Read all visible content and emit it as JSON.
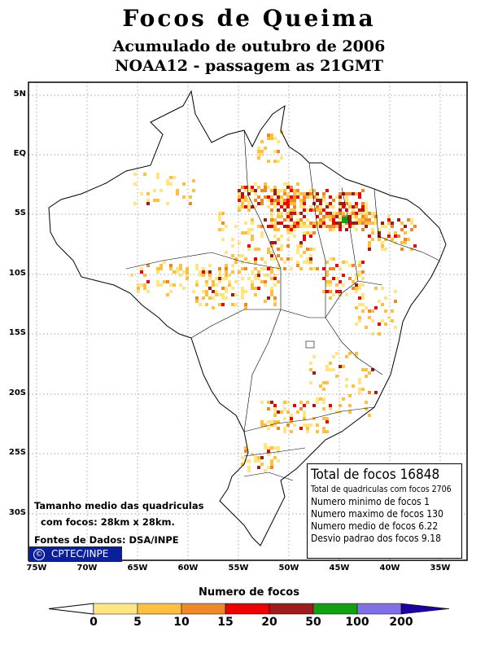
{
  "header": {
    "title": "Focos de Queima",
    "subtitle_1": "Acumulado de outubro de 2006",
    "subtitle_2": "NOAA12 - passagem as 21GMT"
  },
  "map": {
    "latitude_labels": [
      "5N",
      "EQ",
      "5S",
      "10S",
      "15S",
      "20S",
      "25S",
      "30S"
    ],
    "longitude_labels": [
      "75W",
      "70W",
      "65W",
      "60W",
      "55W",
      "50W",
      "45W",
      "40W",
      "35W"
    ]
  },
  "stats": {
    "total_focos": "Total de focos 16848",
    "total_quadriculas": "Total de quadriculas com focos 2706",
    "minimo": "Numero minimo de focos 1",
    "maximo": "Numero maximo de focos 130",
    "medio": "Numero medio de focos 6.22",
    "desvio": "Desvio padrao dos focos 9.18"
  },
  "notes": {
    "line_1": "Tamanho medio das quadriculas",
    "line_2": "com focos: 28km x 28km.",
    "line_3": "Fontes de Dados: DSA/INPE",
    "badge_symbol": "©",
    "badge": "CPTEC/INPE"
  },
  "legend": {
    "title": "Numero de focos",
    "ticks": [
      "0",
      "5",
      "10",
      "15",
      "20",
      "50",
      "100",
      "200"
    ],
    "colors": [
      "#ffe680",
      "#ffc040",
      "#f08828",
      "#f00000",
      "#a01c1c",
      "#10a010",
      "#8070e8",
      "#2000a0"
    ]
  }
}
